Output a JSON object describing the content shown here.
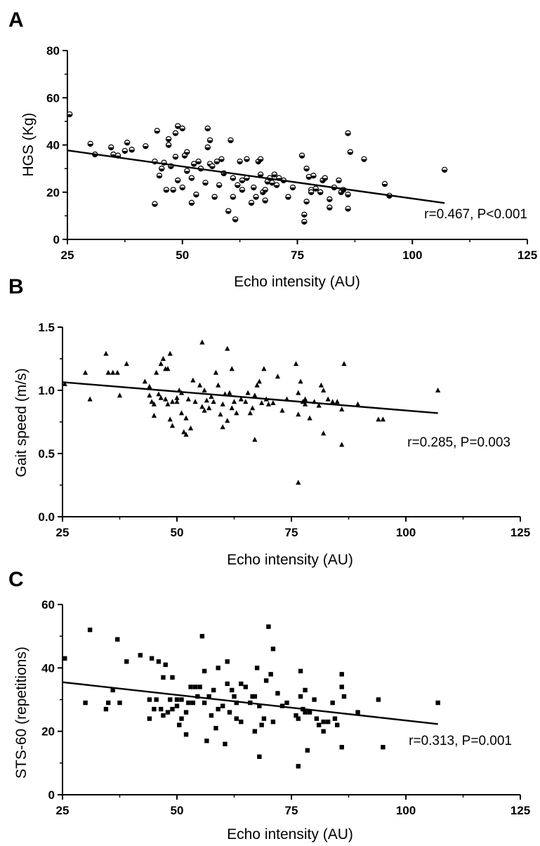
{
  "chart_data": [
    {
      "type": "scatter",
      "panel_label": "A",
      "xlabel": "Echo intensity (AU)",
      "ylabel": "HGS (Kg)",
      "xlim": [
        25,
        125
      ],
      "ylim": [
        0,
        80
      ],
      "xticks": [
        "25",
        "50",
        "75",
        "100",
        "125"
      ],
      "yticks": [
        "0",
        "20",
        "40",
        "60",
        "80"
      ],
      "marker": "circle",
      "annotation": "r=0.467, P<0.001",
      "regression": {
        "x": [
          25,
          107
        ],
        "y": [
          37.7,
          15.4
        ]
      },
      "points": [
        [
          25.5,
          53
        ],
        [
          30,
          40.5
        ],
        [
          31,
          36
        ],
        [
          34.5,
          39
        ],
        [
          35,
          36
        ],
        [
          36,
          35.5
        ],
        [
          37.5,
          37.5
        ],
        [
          38,
          41
        ],
        [
          39,
          38
        ],
        [
          42,
          39.5
        ],
        [
          44,
          33
        ],
        [
          44,
          15
        ],
        [
          44.5,
          46
        ],
        [
          45,
          27
        ],
        [
          45.5,
          30
        ],
        [
          46,
          32.5
        ],
        [
          46.5,
          21
        ],
        [
          47,
          40
        ],
        [
          47,
          42.5
        ],
        [
          47.5,
          31
        ],
        [
          48,
          21
        ],
        [
          48.5,
          45
        ],
        [
          48.5,
          35
        ],
        [
          49,
          48
        ],
        [
          49,
          25
        ],
        [
          50,
          47
        ],
        [
          50,
          22
        ],
        [
          50.5,
          35.5
        ],
        [
          51,
          37
        ],
        [
          51,
          29
        ],
        [
          52,
          15.5
        ],
        [
          52,
          26
        ],
        [
          52.5,
          32
        ],
        [
          53,
          19
        ],
        [
          53.5,
          33
        ],
        [
          54,
          30
        ],
        [
          55,
          24
        ],
        [
          55.5,
          39
        ],
        [
          55.5,
          47
        ],
        [
          56,
          42
        ],
        [
          56,
          32
        ],
        [
          56.5,
          31
        ],
        [
          57,
          18
        ],
        [
          57.5,
          33
        ],
        [
          58,
          23
        ],
        [
          58.5,
          34
        ],
        [
          59,
          28
        ],
        [
          60,
          12
        ],
        [
          60.5,
          42
        ],
        [
          61,
          26
        ],
        [
          61,
          18
        ],
        [
          61.5,
          8.5
        ],
        [
          62,
          23
        ],
        [
          62.5,
          33
        ],
        [
          63,
          21
        ],
        [
          63,
          25
        ],
        [
          64,
          34
        ],
        [
          64,
          26
        ],
        [
          65,
          15.5
        ],
        [
          65.5,
          22
        ],
        [
          66,
          18
        ],
        [
          66.5,
          33
        ],
        [
          67,
          34
        ],
        [
          67,
          27.5
        ],
        [
          67.5,
          20
        ],
        [
          68,
          16.5
        ],
        [
          68,
          21
        ],
        [
          68.5,
          24.5
        ],
        [
          69,
          26
        ],
        [
          69.5,
          24
        ],
        [
          70,
          27.5
        ],
        [
          70.5,
          23
        ],
        [
          71,
          26
        ],
        [
          72,
          25
        ],
        [
          73,
          18
        ],
        [
          74,
          22
        ],
        [
          76,
          35.5
        ],
        [
          76.5,
          10.5
        ],
        [
          76.5,
          7.5
        ],
        [
          77,
          30
        ],
        [
          77,
          16
        ],
        [
          77.5,
          26.5
        ],
        [
          78,
          21
        ],
        [
          78,
          20
        ],
        [
          78.5,
          27
        ],
        [
          79,
          21.5
        ],
        [
          80,
          20
        ],
        [
          80.5,
          25
        ],
        [
          81,
          26
        ],
        [
          82,
          17
        ],
        [
          82,
          13.5
        ],
        [
          83,
          22
        ],
        [
          84,
          25
        ],
        [
          84.5,
          20
        ],
        [
          85,
          21
        ],
        [
          86,
          45
        ],
        [
          86,
          19
        ],
        [
          86.5,
          37
        ],
        [
          86,
          13
        ],
        [
          89.5,
          34
        ],
        [
          94,
          23.5
        ],
        [
          95,
          18.5
        ],
        [
          107,
          29.5
        ]
      ]
    },
    {
      "type": "scatter",
      "panel_label": "B",
      "xlabel": "Echo intensity (AU)",
      "ylabel": "Gait speed (m/s)",
      "xlim": [
        25,
        125
      ],
      "ylim": [
        0,
        1.5
      ],
      "xticks": [
        "25",
        "50",
        "75",
        "100",
        "125"
      ],
      "yticks": [
        "0.0",
        "0.5",
        "1.0",
        "1.5"
      ],
      "marker": "triangle",
      "annotation": "r=0.285, P=0.003",
      "regression": {
        "x": [
          25,
          107
        ],
        "y": [
          1.065,
          0.82
        ]
      },
      "points": [
        [
          25.5,
          1.05
        ],
        [
          30,
          1.14
        ],
        [
          31,
          0.93
        ],
        [
          34.5,
          1.29
        ],
        [
          35,
          1.14
        ],
        [
          36,
          1.14
        ],
        [
          37,
          1.14
        ],
        [
          37.5,
          0.96
        ],
        [
          39,
          1.21
        ],
        [
          43,
          1.07
        ],
        [
          44,
          1.03
        ],
        [
          44,
          0.96
        ],
        [
          44.5,
          0.91
        ],
        [
          45,
          0.89
        ],
        [
          45,
          0.8
        ],
        [
          45.5,
          1.14
        ],
        [
          46,
          0.97
        ],
        [
          46.5,
          1.21
        ],
        [
          46.5,
          0.94
        ],
        [
          47,
          1.25
        ],
        [
          47.5,
          1.17
        ],
        [
          47.5,
          0.93
        ],
        [
          48,
          0.89
        ],
        [
          48,
          1.17
        ],
        [
          48.5,
          0.77
        ],
        [
          48.5,
          1.29
        ],
        [
          49,
          0.91
        ],
        [
          49,
          0.72
        ],
        [
          50,
          0.94
        ],
        [
          50,
          0.91
        ],
        [
          50.5,
          1.0
        ],
        [
          51,
          0.98
        ],
        [
          51,
          0.82
        ],
        [
          51.5,
          0.67
        ],
        [
          52,
          0.78
        ],
        [
          52,
          0.65
        ],
        [
          52.5,
          0.93
        ],
        [
          53,
          0.7
        ],
        [
          53.5,
          1.08
        ],
        [
          54,
          0.91
        ],
        [
          55,
          1.04
        ],
        [
          55.5,
          1.38
        ],
        [
          55.5,
          0.87
        ],
        [
          56,
          1.0
        ],
        [
          56,
          0.84
        ],
        [
          56.5,
          0.92
        ],
        [
          57,
          0.86
        ],
        [
          57.5,
          0.95
        ],
        [
          58,
          0.91
        ],
        [
          58.5,
          1.14
        ],
        [
          59,
          1.04
        ],
        [
          59.5,
          0.81
        ],
        [
          60,
          0.71
        ],
        [
          60,
          0.89
        ],
        [
          60.5,
          0.97
        ],
        [
          61,
          1.33
        ],
        [
          61,
          0.76
        ],
        [
          61.5,
          0.98
        ],
        [
          62,
          1.17
        ],
        [
          62,
          0.86
        ],
        [
          62.5,
          0.91
        ],
        [
          63,
          0.82
        ],
        [
          64,
          0.93
        ],
        [
          65,
          0.91
        ],
        [
          65.5,
          0.98
        ],
        [
          66,
          0.82
        ],
        [
          66.5,
          0.86
        ],
        [
          67,
          0.61
        ],
        [
          67,
          0.96
        ],
        [
          67.5,
          1.04
        ],
        [
          68,
          1.07
        ],
        [
          68.5,
          0.9
        ],
        [
          69,
          1.17
        ],
        [
          69.5,
          0.93
        ],
        [
          70,
          0.89
        ],
        [
          71,
          0.9
        ],
        [
          72,
          1.11
        ],
        [
          73,
          0.84
        ],
        [
          74,
          0.93
        ],
        [
          76,
          1.21
        ],
        [
          76.5,
          0.27
        ],
        [
          76.5,
          0.98
        ],
        [
          76.5,
          0.81
        ],
        [
          77,
          1.07
        ],
        [
          77.5,
          0.91
        ],
        [
          78,
          0.93
        ],
        [
          78,
          0.89
        ],
        [
          79,
          0.78
        ],
        [
          80,
          0.91
        ],
        [
          81,
          0.88
        ],
        [
          81.5,
          1.04
        ],
        [
          82,
          1.0
        ],
        [
          82,
          0.66
        ],
        [
          83,
          0.93
        ],
        [
          84,
          0.91
        ],
        [
          85,
          0.91
        ],
        [
          86,
          0.85
        ],
        [
          86,
          0.57
        ],
        [
          86.5,
          1.21
        ],
        [
          89.5,
          0.89
        ],
        [
          94,
          0.77
        ],
        [
          95,
          0.77
        ],
        [
          107,
          1.0
        ]
      ]
    },
    {
      "type": "scatter",
      "panel_label": "C",
      "xlabel": "Echo intensity (AU)",
      "ylabel": "STS-60 (repetitions)",
      "xlim": [
        25,
        125
      ],
      "ylim": [
        0,
        60
      ],
      "xticks": [
        "25",
        "50",
        "75",
        "100",
        "125"
      ],
      "yticks": [
        "0",
        "20",
        "40",
        "60"
      ],
      "marker": "square",
      "annotation": "r=0.313, P=0.001",
      "regression": {
        "x": [
          25,
          107
        ],
        "y": [
          35.5,
          22.3
        ]
      },
      "points": [
        [
          25.5,
          43
        ],
        [
          30,
          29
        ],
        [
          31,
          52
        ],
        [
          34.5,
          27
        ],
        [
          35,
          29
        ],
        [
          36,
          33
        ],
        [
          37,
          49
        ],
        [
          37.5,
          29
        ],
        [
          39,
          42
        ],
        [
          42,
          44
        ],
        [
          44,
          30
        ],
        [
          44,
          24
        ],
        [
          44.5,
          43
        ],
        [
          45,
          27
        ],
        [
          45.5,
          30
        ],
        [
          46,
          42
        ],
        [
          46.5,
          27
        ],
        [
          47,
          37
        ],
        [
          47,
          25
        ],
        [
          47.5,
          41
        ],
        [
          48,
          26
        ],
        [
          48.5,
          30
        ],
        [
          49,
          37
        ],
        [
          49,
          27
        ],
        [
          50,
          30
        ],
        [
          50,
          28
        ],
        [
          50.5,
          22
        ],
        [
          51,
          30
        ],
        [
          51,
          24
        ],
        [
          52,
          26
        ],
        [
          52,
          19
        ],
        [
          52.5,
          29
        ],
        [
          53,
          34
        ],
        [
          53.5,
          29
        ],
        [
          54,
          34
        ],
        [
          54.5,
          31
        ],
        [
          55,
          34
        ],
        [
          55.5,
          50
        ],
        [
          56,
          39
        ],
        [
          56,
          29
        ],
        [
          56.5,
          17
        ],
        [
          57,
          31
        ],
        [
          57.5,
          25
        ],
        [
          58,
          33
        ],
        [
          58.5,
          21
        ],
        [
          59,
          27
        ],
        [
          59,
          40
        ],
        [
          60,
          28
        ],
        [
          60.5,
          16
        ],
        [
          61,
          42
        ],
        [
          61,
          35
        ],
        [
          61.5,
          26
        ],
        [
          62,
          33
        ],
        [
          62.5,
          31
        ],
        [
          63,
          24
        ],
        [
          63,
          29
        ],
        [
          64,
          35
        ],
        [
          64,
          23
        ],
        [
          65,
          34
        ],
        [
          66,
          29
        ],
        [
          66.5,
          31
        ],
        [
          67,
          31
        ],
        [
          67,
          20
        ],
        [
          67.5,
          40
        ],
        [
          68,
          12
        ],
        [
          68,
          28
        ],
        [
          68.5,
          22
        ],
        [
          69,
          24
        ],
        [
          69.5,
          36
        ],
        [
          70,
          53
        ],
        [
          70.5,
          38
        ],
        [
          71,
          46
        ],
        [
          71,
          23
        ],
        [
          72,
          32
        ],
        [
          73,
          28
        ],
        [
          74,
          29
        ],
        [
          76,
          25
        ],
        [
          76.5,
          24
        ],
        [
          76.5,
          9
        ],
        [
          77,
          31
        ],
        [
          77,
          39
        ],
        [
          77.5,
          27
        ],
        [
          78,
          26
        ],
        [
          78,
          33
        ],
        [
          78.5,
          14
        ],
        [
          79,
          26
        ],
        [
          80,
          30
        ],
        [
          80.5,
          24
        ],
        [
          81,
          22
        ],
        [
          82,
          23
        ],
        [
          82,
          20
        ],
        [
          83,
          23
        ],
        [
          84,
          29
        ],
        [
          84.5,
          24
        ],
        [
          85,
          22
        ],
        [
          86,
          38
        ],
        [
          86,
          34
        ],
        [
          86,
          15
        ],
        [
          86.5,
          31
        ],
        [
          89.5,
          26
        ],
        [
          94,
          30
        ],
        [
          95,
          15
        ],
        [
          107,
          29
        ]
      ]
    }
  ]
}
